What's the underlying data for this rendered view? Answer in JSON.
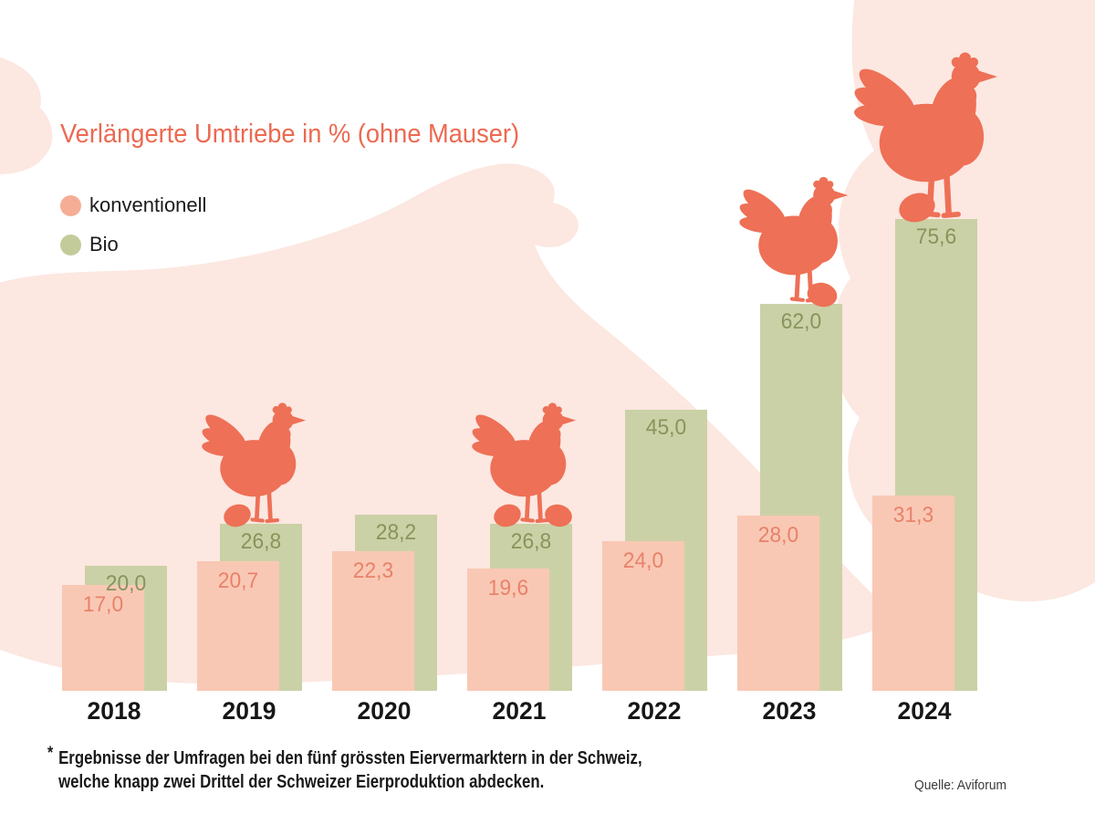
{
  "header": {
    "title": "Verlängerte Umtriebe in % (ohne Mauser)",
    "title_color": "#ec6951"
  },
  "legend": {
    "items": [
      {
        "label": "konventionell",
        "color": "#f5ad96"
      },
      {
        "label": "Bio",
        "color": "#c3cb9b"
      }
    ]
  },
  "chart_data": {
    "type": "bar",
    "title": "Verlängerte Umtriebe in % (ohne Mauser)",
    "categories": [
      "2018",
      "2019",
      "2020",
      "2021",
      "2022",
      "2023",
      "2024"
    ],
    "series": [
      {
        "name": "konventionell",
        "color": "#f9c8b4",
        "label_color": "#e8826a",
        "values": [
          17.0,
          20.7,
          22.3,
          19.6,
          24.0,
          28.0,
          31.3
        ],
        "labels": [
          "17,0",
          "20,7",
          "22,3",
          "19,6",
          "24,0",
          "28,0",
          "31,3"
        ]
      },
      {
        "name": "Bio",
        "color": "#cbd1a6",
        "label_color": "#87945c",
        "values": [
          20.0,
          26.8,
          28.2,
          26.8,
          45.0,
          62.0,
          75.6
        ],
        "labels": [
          "20,0",
          "26,8",
          "28,2",
          "26,8",
          "45,0",
          "62,0",
          "75,6"
        ]
      }
    ],
    "xlabel": "",
    "ylabel": "",
    "ylim": [
      0,
      80
    ],
    "grid": false,
    "legend_position": "top-left",
    "value_decimal_separator": ",",
    "value_labels_shown": true
  },
  "footnote": {
    "marker": "*",
    "lines": [
      "Ergebnisse der Umfragen bei den fünf grössten Eiervermarktern in der Schweiz,",
      "welche knapp zwei Drittel der Schweizer Eierproduktion abdecken."
    ]
  },
  "source": {
    "label": "Quelle: Aviforum"
  },
  "decorations": {
    "hen_icon_color": "#ee7056",
    "egg_icon_color": "#ee7056",
    "background_blob_color": "#fce7e1",
    "hens": [
      {
        "on_year": "2019",
        "size": "small",
        "eggs": [
          "left"
        ]
      },
      {
        "on_year": "2021",
        "size": "small",
        "eggs": [
          "left",
          "right"
        ]
      },
      {
        "on_year": "2023",
        "size": "medium",
        "eggs": [
          "right"
        ]
      },
      {
        "on_year": "2024",
        "size": "large",
        "eggs": [
          "left"
        ]
      }
    ]
  }
}
